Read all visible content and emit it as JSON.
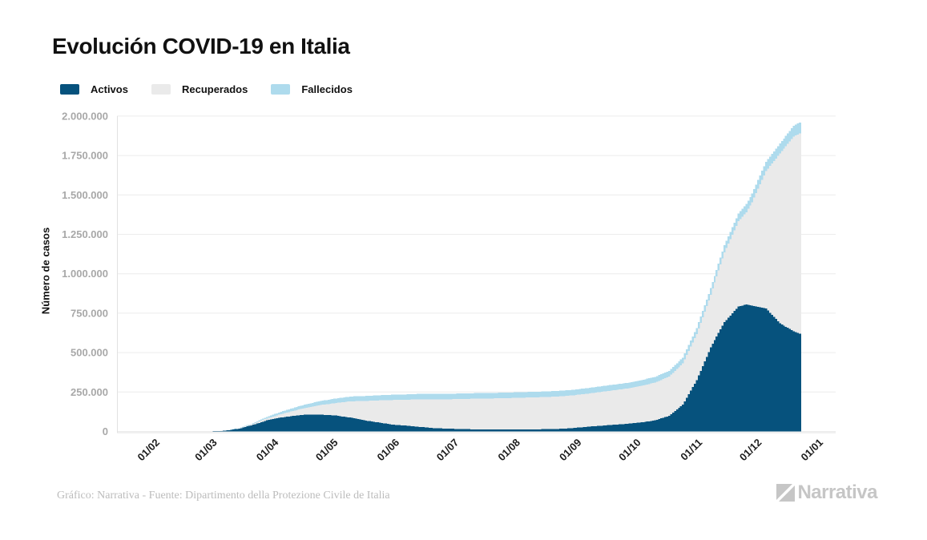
{
  "header": {
    "title": "Evolución COVID-19 en Italia"
  },
  "colors": {
    "title": "#111111",
    "grid": "#ececec",
    "axis": "#e2e2e2",
    "y_tick_text": "#a8a8a8",
    "x_tick_text": "#1c1c1c",
    "footer_text": "#bcbcbc",
    "logo": "#c6c6c6"
  },
  "chart_data": {
    "type": "area",
    "stacked": true,
    "title": "Evolución COVID-19 en Italia",
    "xlabel": "",
    "ylabel": "Número de casos",
    "grid": "horizontal",
    "legend_position": "top-left",
    "ylim": [
      0,
      2000000
    ],
    "y_ticks": [
      0,
      250000,
      500000,
      750000,
      1000000,
      1250000,
      1500000,
      1750000,
      2000000
    ],
    "y_tick_labels": [
      "0",
      "250.000",
      "500.000",
      "750.000",
      "1.000.000",
      "1.250.000",
      "1.500.000",
      "1.750.000",
      "2.000.000"
    ],
    "x_tick_labels": [
      "01/02",
      "01/03",
      "01/04",
      "01/05",
      "01/06",
      "01/07",
      "01/08",
      "01/09",
      "01/10",
      "01/11",
      "01/12",
      "01/01"
    ],
    "x_tick_day_offsets": [
      0,
      29,
      60,
      90,
      121,
      151,
      182,
      213,
      243,
      274,
      304,
      335
    ],
    "series": [
      {
        "name": "Activos",
        "color": "#06527d"
      },
      {
        "name": "Recuperados",
        "color": "#eaeaea"
      },
      {
        "name": "Fallecidos",
        "color": "#aedbed"
      }
    ],
    "points": {
      "day_zero_label": "01/02",
      "days": [
        0,
        21,
        28,
        35,
        42,
        49,
        56,
        63,
        70,
        77,
        84,
        91,
        98,
        105,
        112,
        119,
        126,
        133,
        140,
        147,
        154,
        161,
        168,
        175,
        182,
        189,
        196,
        203,
        210,
        217,
        224,
        231,
        238,
        245,
        252,
        259,
        266,
        273,
        280,
        287,
        294,
        298,
        301,
        308,
        315,
        322,
        325
      ],
      "activos": [
        0,
        150,
        1050,
        4640,
        17750,
        42680,
        70065,
        88274,
        100269,
        107771,
        105847,
        100704,
        87961,
        70187,
        57752,
        43691,
        36976,
        28997,
        21543,
        17638,
        15255,
        13459,
        12473,
        12368,
        12422,
        12924,
        14249,
        16014,
        20753,
        28915,
        35708,
        42457,
        48593,
        57429,
        70110,
        99266,
        169302,
        325786,
        532536,
        693273,
        791697,
        805947,
        796849,
        779945,
        686031,
        635343,
        620166
      ],
      "recuperados": [
        0,
        1,
        50,
        520,
        1966,
        6072,
        12384,
        20996,
        32534,
        44927,
        63120,
        79914,
        103031,
        122810,
        138840,
        155633,
        163781,
        174865,
        182453,
        186111,
        190717,
        194273,
        196246,
        198446,
        200460,
        202697,
        203968,
        205470,
        207653,
        209027,
        213950,
        218703,
        223693,
        231914,
        239709,
        249127,
        261808,
        292380,
        335074,
        442364,
        541040,
        584493,
        657580,
        871916,
        1076891,
        1235164,
        1270000
      ],
      "fallecidos": [
        0,
        5,
        29,
        197,
        1441,
        4825,
        10023,
        15362,
        19468,
        23227,
        26384,
        28710,
        30395,
        31763,
        32735,
        33340,
        33846,
        34301,
        34634,
        34708,
        34854,
        34938,
        35042,
        35097,
        35146,
        35190,
        35231,
        35430,
        35473,
        35541,
        35603,
        35692,
        35818,
        35968,
        36140,
        36474,
        37210,
        38321,
        40926,
        44683,
        48569,
        52028,
        53677,
        58852,
        62853,
        67576,
        69842
      ]
    }
  },
  "footer": {
    "credit": "Gráfico: Narrativa - Fuente: Dipartimento della Protezione Civile de Italia",
    "brand": "Narrativa"
  }
}
